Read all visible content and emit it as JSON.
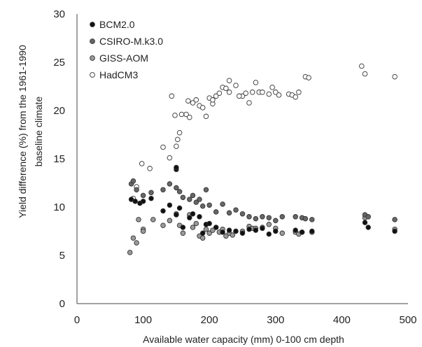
{
  "chart_data": {
    "type": "scatter",
    "xlabel": "Available water capacity (mm) 0-100 cm depth",
    "ylabel_lines": [
      "Yield difference  (%) from the 1961-1990",
      "baseline climate"
    ],
    "xlim": [
      0,
      500
    ],
    "ylim": [
      0,
      30
    ],
    "x_ticks": [
      "0",
      "100",
      "200",
      "300",
      "400",
      "500"
    ],
    "y_ticks": [
      "0",
      "5",
      "10",
      "15",
      "20",
      "25",
      "30"
    ],
    "grid": false,
    "legend_position": "top-left",
    "colors": {
      "BCM2.0": "#111111",
      "CSIRO-M.k3.0": "#666666",
      "GISS-AOM": "#9a9a9a",
      "HadCM3": "#ffffff",
      "marker_edge": "#333333"
    },
    "series": [
      {
        "name": "BCM2.0",
        "points": [
          [
            82,
            10.8
          ],
          [
            88,
            10.6
          ],
          [
            95,
            10.4
          ],
          [
            100,
            10.6
          ],
          [
            112,
            10.9
          ],
          [
            130,
            9.6
          ],
          [
            140,
            10.2
          ],
          [
            150,
            9.2
          ],
          [
            150,
            13.9
          ],
          [
            150,
            14.1
          ],
          [
            155,
            9.9
          ],
          [
            160,
            7.9
          ],
          [
            170,
            8.9
          ],
          [
            175,
            9.3
          ],
          [
            185,
            9.0
          ],
          [
            190,
            7.3
          ],
          [
            195,
            8.2
          ],
          [
            200,
            8.3
          ],
          [
            210,
            7.9
          ],
          [
            220,
            7.4
          ],
          [
            230,
            7.6
          ],
          [
            240,
            7.5
          ],
          [
            250,
            7.3
          ],
          [
            260,
            7.7
          ],
          [
            270,
            7.6
          ],
          [
            280,
            7.8
          ],
          [
            290,
            7.2
          ],
          [
            300,
            7.5
          ],
          [
            330,
            7.6
          ],
          [
            340,
            7.4
          ],
          [
            355,
            7.5
          ],
          [
            435,
            8.4
          ],
          [
            440,
            7.9
          ],
          [
            480,
            7.5
          ]
        ]
      },
      {
        "name": "CSIRO-M.k3.0",
        "points": [
          [
            82,
            12.4
          ],
          [
            85,
            12.7
          ],
          [
            90,
            11.8
          ],
          [
            100,
            11.2
          ],
          [
            112,
            11.5
          ],
          [
            130,
            11.8
          ],
          [
            140,
            12.4
          ],
          [
            150,
            12.0
          ],
          [
            155,
            11.6
          ],
          [
            160,
            11.0
          ],
          [
            170,
            10.8
          ],
          [
            175,
            11.2
          ],
          [
            180,
            10.5
          ],
          [
            185,
            10.8
          ],
          [
            190,
            10.1
          ],
          [
            195,
            11.8
          ],
          [
            200,
            10.2
          ],
          [
            210,
            9.5
          ],
          [
            220,
            10.3
          ],
          [
            230,
            9.4
          ],
          [
            240,
            9.7
          ],
          [
            250,
            9.3
          ],
          [
            260,
            9.0
          ],
          [
            270,
            8.8
          ],
          [
            280,
            9.0
          ],
          [
            290,
            8.9
          ],
          [
            300,
            8.6
          ],
          [
            310,
            9.0
          ],
          [
            330,
            9.0
          ],
          [
            340,
            8.9
          ],
          [
            345,
            8.8
          ],
          [
            355,
            8.7
          ],
          [
            435,
            9.2
          ],
          [
            440,
            9.0
          ],
          [
            480,
            8.7
          ]
        ]
      },
      {
        "name": "GISS-AOM",
        "points": [
          [
            80,
            5.3
          ],
          [
            85,
            6.8
          ],
          [
            90,
            6.3
          ],
          [
            93,
            8.7
          ],
          [
            100,
            7.7
          ],
          [
            100,
            7.5
          ],
          [
            115,
            8.7
          ],
          [
            130,
            8.1
          ],
          [
            140,
            8.6
          ],
          [
            150,
            9.3
          ],
          [
            155,
            8.1
          ],
          [
            160,
            7.3
          ],
          [
            170,
            9.2
          ],
          [
            175,
            7.9
          ],
          [
            180,
            8.3
          ],
          [
            185,
            7.0
          ],
          [
            190,
            6.8
          ],
          [
            195,
            7.7
          ],
          [
            200,
            7.3
          ],
          [
            205,
            7.6
          ],
          [
            210,
            7.9
          ],
          [
            215,
            7.4
          ],
          [
            220,
            7.7
          ],
          [
            225,
            7.0
          ],
          [
            230,
            7.3
          ],
          [
            235,
            7.1
          ],
          [
            240,
            7.5
          ],
          [
            250,
            7.5
          ],
          [
            260,
            8.0
          ],
          [
            265,
            7.8
          ],
          [
            270,
            7.8
          ],
          [
            280,
            7.9
          ],
          [
            290,
            8.2
          ],
          [
            300,
            7.8
          ],
          [
            310,
            7.3
          ],
          [
            330,
            7.4
          ],
          [
            335,
            7.2
          ],
          [
            340,
            7.4
          ],
          [
            355,
            7.4
          ],
          [
            435,
            8.9
          ],
          [
            480,
            7.7
          ]
        ]
      },
      {
        "name": "HadCM3",
        "points": [
          [
            85,
            10.9
          ],
          [
            90,
            12.1
          ],
          [
            98,
            14.5
          ],
          [
            110,
            14.0
          ],
          [
            130,
            16.2
          ],
          [
            140,
            15.1
          ],
          [
            148,
            19.5
          ],
          [
            150,
            16.3
          ],
          [
            152,
            17.0
          ],
          [
            155,
            17.7
          ],
          [
            158,
            19.6
          ],
          [
            165,
            19.6
          ],
          [
            170,
            19.3
          ],
          [
            175,
            20.8
          ],
          [
            180,
            21.1
          ],
          [
            185,
            20.5
          ],
          [
            190,
            20.3
          ],
          [
            195,
            19.4
          ],
          [
            200,
            21.3
          ],
          [
            205,
            20.7
          ],
          [
            210,
            21.5
          ],
          [
            215,
            21.8
          ],
          [
            220,
            22.4
          ],
          [
            225,
            22.3
          ],
          [
            230,
            23.1
          ],
          [
            240,
            22.6
          ],
          [
            250,
            21.5
          ],
          [
            255,
            21.8
          ],
          [
            260,
            20.8
          ],
          [
            265,
            21.9
          ],
          [
            270,
            22.9
          ],
          [
            275,
            21.9
          ],
          [
            280,
            21.9
          ],
          [
            290,
            21.7
          ],
          [
            295,
            22.4
          ],
          [
            300,
            21.9
          ],
          [
            305,
            21.6
          ],
          [
            320,
            21.7
          ],
          [
            325,
            21.6
          ],
          [
            330,
            21.4
          ],
          [
            335,
            21.9
          ],
          [
            345,
            23.5
          ],
          [
            350,
            23.4
          ],
          [
            430,
            24.6
          ],
          [
            435,
            23.8
          ],
          [
            480,
            23.5
          ],
          [
            143,
            21.5
          ],
          [
            168,
            21.0
          ],
          [
            205,
            21.1
          ],
          [
            230,
            21.9
          ],
          [
            245,
            21.5
          ]
        ]
      }
    ]
  }
}
